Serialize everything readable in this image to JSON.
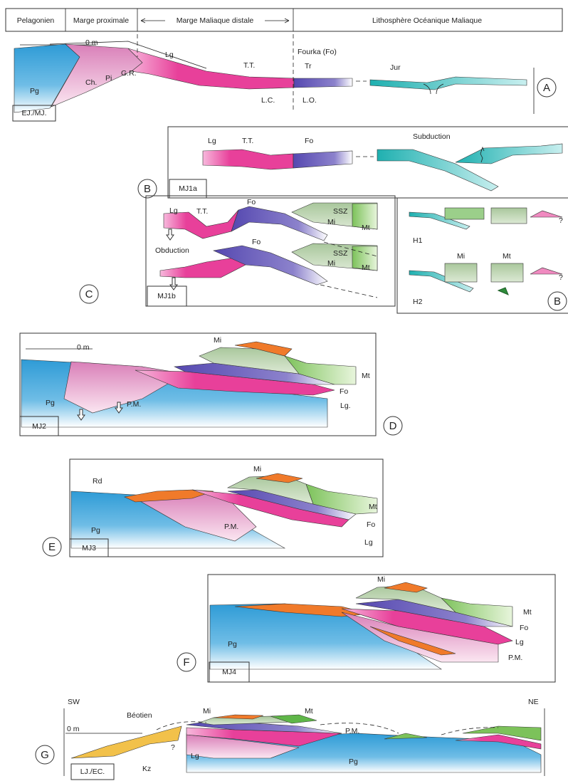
{
  "header": {
    "cells": [
      "Pelagonien",
      "Marge proximale",
      "Marge Maliaque distale",
      "Lithosphère Océanique Maliaque"
    ]
  },
  "panels": [
    {
      "letter": "A",
      "stage": "EJ./MJ.",
      "labels": [
        "0 m",
        "Pg",
        "Ch.",
        "Pi",
        "G.R.",
        "Lg",
        "T.T.",
        "L.C.",
        "Fourka (Fo)",
        "Tr",
        "L.O.",
        "Jur"
      ]
    },
    {
      "letter": "B",
      "stage": "MJ1a",
      "labels": [
        "Lg",
        "T.T.",
        "Fo",
        "Subduction"
      ]
    },
    {
      "letter": "C",
      "stage": "MJ1b",
      "labels": [
        "Lg",
        "T.T.",
        "Fo",
        "SSZ",
        "Mi",
        "Mt",
        "Obduction",
        "Fo",
        "SSZ",
        "Mi",
        "Mt"
      ]
    },
    {
      "letter": "D",
      "stage": "MJ2",
      "labels": [
        "0 m",
        "Mi",
        "Mt",
        "Fo",
        "Lg.",
        "Pg",
        "P.M."
      ]
    },
    {
      "letter": "E",
      "stage": "MJ3",
      "labels": [
        "Rd",
        "Mi",
        "Mt",
        "Fo",
        "Lg",
        "Pg",
        "P.M."
      ]
    },
    {
      "letter": "F",
      "stage": "MJ4",
      "labels": [
        "Mi",
        "Mt",
        "Fo",
        "Lg",
        "P.M.",
        "Pg"
      ]
    },
    {
      "letter": "G",
      "stage": "LJ./EC.",
      "labels": [
        "SW",
        "NE",
        "0 m",
        "Béotien",
        "Mi",
        "Mt",
        "P.M.",
        "?",
        "Kz",
        "Lg",
        "Pg"
      ]
    }
  ],
  "inset": {
    "letter": "B",
    "labels": [
      "H1",
      "H2",
      "Mi",
      "Mt",
      "?",
      "?"
    ]
  }
}
